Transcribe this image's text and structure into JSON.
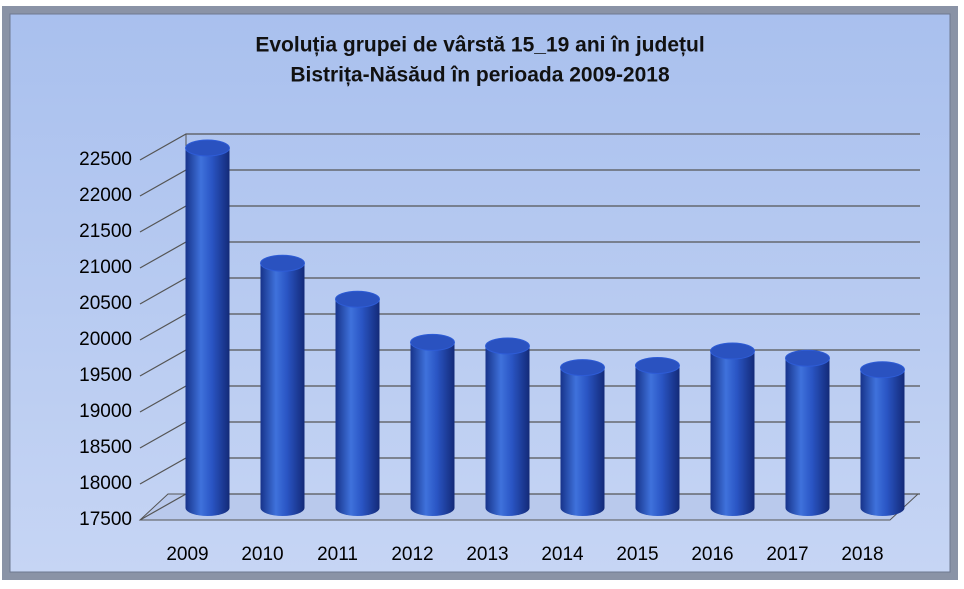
{
  "chart_data": {
    "type": "bar",
    "title": [
      "Evoluția grupei de vârstă 15_19 ani în județul",
      "Bistrița-Năsăud în perioada 2009-2018"
    ],
    "categories": [
      "2009",
      "2010",
      "2011",
      "2012",
      "2013",
      "2014",
      "2015",
      "2016",
      "2017",
      "2018"
    ],
    "values": [
      22500,
      20900,
      20400,
      19800,
      19750,
      19450,
      19480,
      19680,
      19580,
      19420
    ],
    "color": "#2a52c0",
    "ylim": [
      17500,
      22500
    ],
    "yticks": [
      17500,
      18000,
      18500,
      19000,
      19500,
      20000,
      20500,
      21000,
      21500,
      22000,
      22500
    ],
    "grid": true
  }
}
